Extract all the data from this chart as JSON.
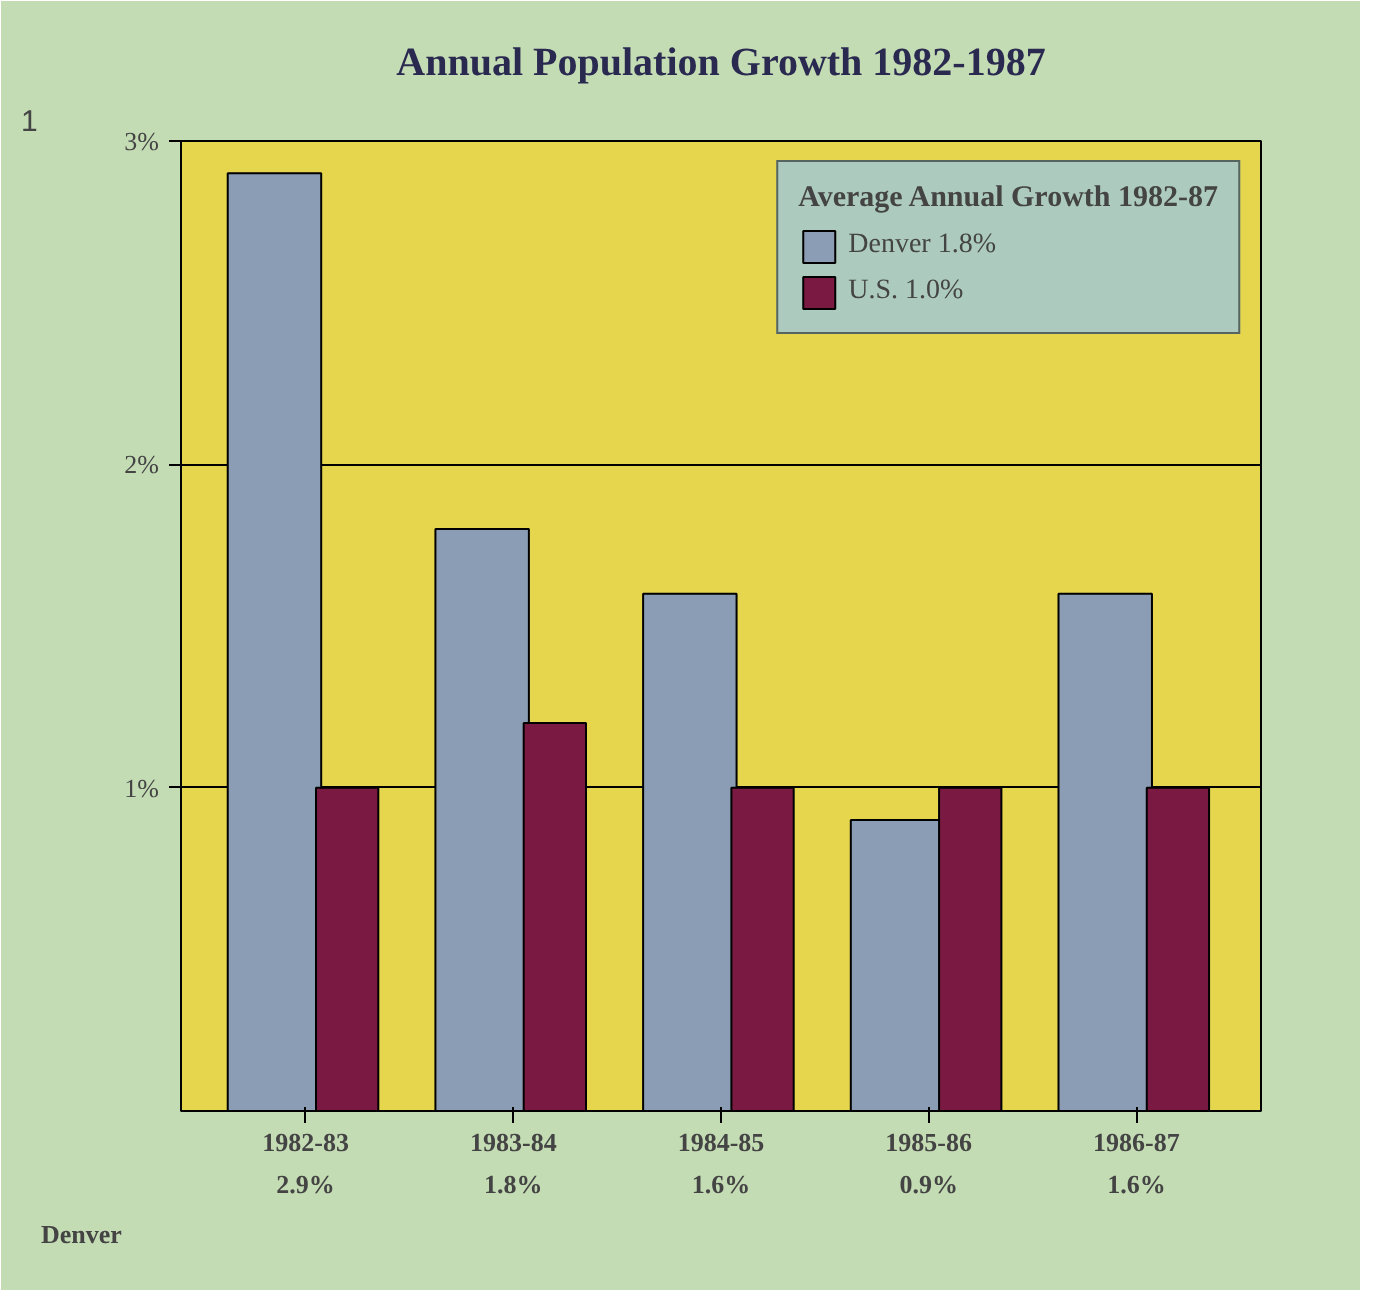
{
  "chart_data": {
    "type": "bar",
    "title": "Annual Population Growth 1982-1987",
    "legend_title": "Average Annual Growth 1982-87",
    "categories": [
      "1982-83",
      "1983-84",
      "1984-85",
      "1985-86",
      "1986-87"
    ],
    "series": [
      {
        "name": "Denver 1.8%",
        "color": "#8b9db4",
        "values": [
          2.9,
          1.8,
          1.6,
          0.9,
          1.6
        ],
        "value_labels": [
          "2.9%",
          "1.8%",
          "1.6%",
          "0.9%",
          "1.6%"
        ]
      },
      {
        "name": "U.S. 1.0%",
        "color": "#7a1a42",
        "values": [
          1.0,
          1.2,
          1.0,
          1.0,
          1.0
        ]
      }
    ],
    "ylim": [
      0,
      3
    ],
    "yticks": [
      {
        "value": 1,
        "label": "1%"
      },
      {
        "value": 2,
        "label": "2%"
      },
      {
        "value": 3,
        "label": "3%"
      }
    ],
    "grid": "y",
    "legend": "top right",
    "annotations": [
      "1",
      "Denver"
    ]
  }
}
